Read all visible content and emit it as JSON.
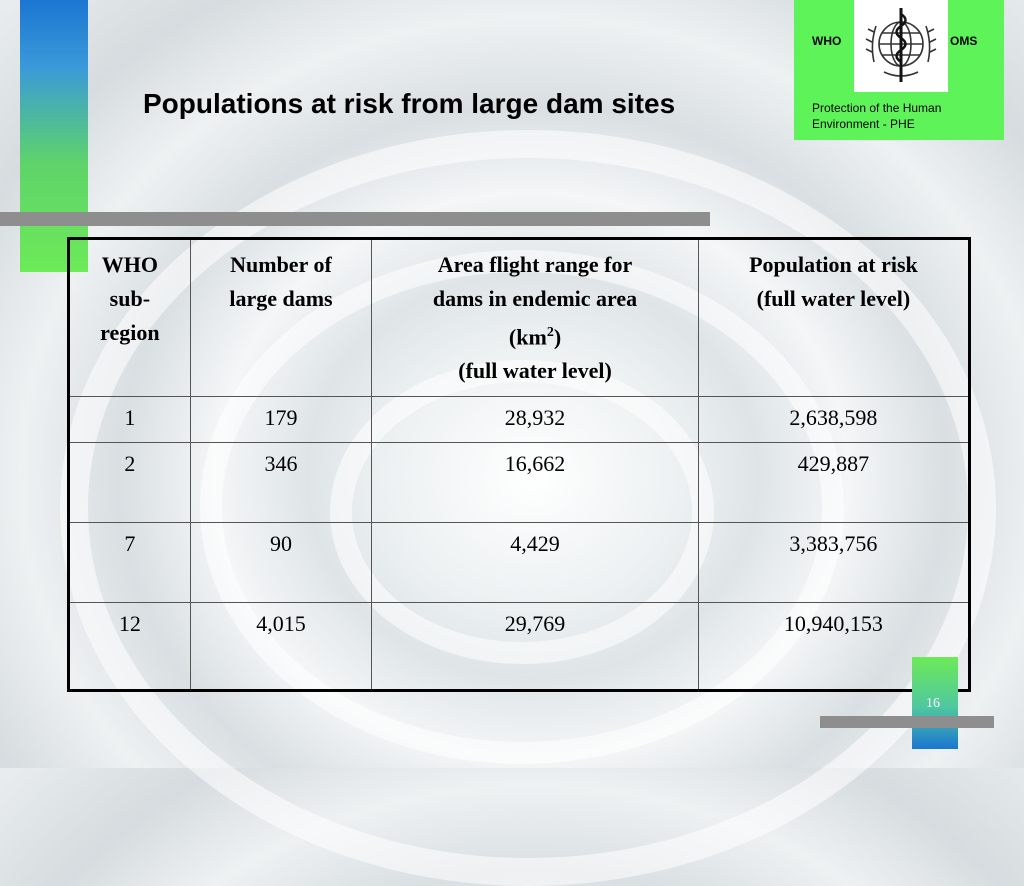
{
  "slide": {
    "title": "Populations at risk from large dam sites",
    "page_number": "16"
  },
  "logo": {
    "left_text": "WHO",
    "right_text": "OMS",
    "caption_line1": "Protection of  the Human",
    "caption_line2": "Environment  -  PHE"
  },
  "table": {
    "headers": {
      "col1_lines": [
        "WHO",
        "sub-",
        "region"
      ],
      "col2_lines": [
        "Number of",
        "large dams"
      ],
      "col3_line1": "Area flight range for",
      "col3_line2": "dams in endemic area",
      "col3_unit": "(km",
      "col3_sup": "2",
      "col3_unit_close": ")",
      "col3_line4": "(full water level)",
      "col4_lines": [
        "Population at risk",
        "(full water level)"
      ]
    },
    "rows": [
      {
        "region": "1",
        "dams": "179",
        "area": "28,932",
        "population": "2,638,598"
      },
      {
        "region": "2",
        "dams": "346",
        "area": "16,662",
        "population": "429,887"
      },
      {
        "region": "7",
        "dams": "90",
        "area": "4,429",
        "population": "3,383,756"
      },
      {
        "region": "12",
        "dams": "4,015",
        "area": "29,769",
        "population": "10,940,153"
      }
    ]
  },
  "colors": {
    "accent_green": "#5ff35a",
    "accent_blue": "#1a76d2",
    "bar_gray": "#8e8e8e"
  }
}
